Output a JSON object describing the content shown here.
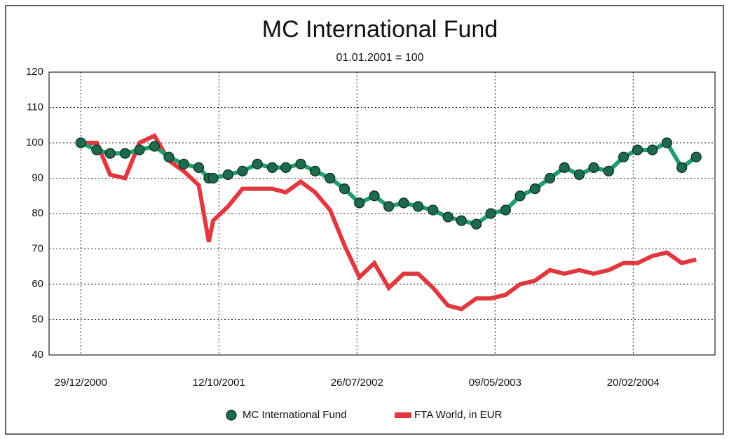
{
  "chart_data": {
    "type": "line",
    "title": "MC International Fund",
    "subtitle": "01.01.2001 = 100",
    "x": [
      "29/12/2000",
      "31/01/2001",
      "28/02/2001",
      "31/03/2001",
      "30/04/2001",
      "31/05/2001",
      "30/06/2001",
      "31/07/2001",
      "31/08/2001",
      "21/09/2001",
      "30/09/2001",
      "31/10/2001",
      "30/11/2001",
      "31/12/2001",
      "31/01/2002",
      "28/02/2002",
      "31/03/2002",
      "30/04/2002",
      "31/05/2002",
      "30/06/2002",
      "31/07/2002",
      "31/08/2002",
      "30/09/2002",
      "31/10/2002",
      "30/11/2002",
      "31/12/2002",
      "31/01/2003",
      "28/02/2003",
      "31/03/2003",
      "30/04/2003",
      "31/05/2003",
      "30/06/2003",
      "31/07/2003",
      "31/08/2003",
      "30/09/2003",
      "31/10/2003",
      "30/11/2003",
      "31/12/2003",
      "31/01/2004",
      "29/02/2004",
      "31/03/2004",
      "30/04/2004",
      "31/05/2004",
      "30/06/2004"
    ],
    "series": [
      {
        "name": "MC International Fund",
        "color": "#1f9e6e",
        "marker_color": "#1d6b4c",
        "values": [
          100,
          98,
          97,
          97,
          98,
          99,
          96,
          94,
          93,
          90,
          90,
          91,
          92,
          94,
          93,
          93,
          94,
          92,
          90,
          87,
          83,
          85,
          82,
          83,
          82,
          81,
          79,
          78,
          77,
          80,
          81,
          85,
          87,
          90,
          93,
          91,
          93,
          92,
          96,
          98,
          98,
          100,
          93,
          96
        ]
      },
      {
        "name": "FTA World, in EUR",
        "color": "#e0383e",
        "values": [
          100,
          100,
          91,
          90,
          100,
          102,
          95,
          92,
          88,
          72,
          78,
          82,
          87,
          87,
          87,
          86,
          89,
          86,
          81,
          71,
          62,
          66,
          59,
          63,
          63,
          59,
          54,
          53,
          56,
          56,
          57,
          60,
          61,
          64,
          63,
          64,
          63,
          64,
          66,
          66,
          68,
          69,
          66,
          67
        ]
      }
    ],
    "xlim": [
      "24/10/2000",
      "08/08/2004"
    ],
    "xticks": [
      "29/12/2000",
      "12/10/2001",
      "26/07/2002",
      "09/05/2003",
      "20/02/2004"
    ],
    "ylim": [
      40,
      120
    ],
    "yticks": [
      40,
      50,
      60,
      70,
      80,
      90,
      100,
      110,
      120
    ],
    "grid": true,
    "legend": "bottom"
  }
}
